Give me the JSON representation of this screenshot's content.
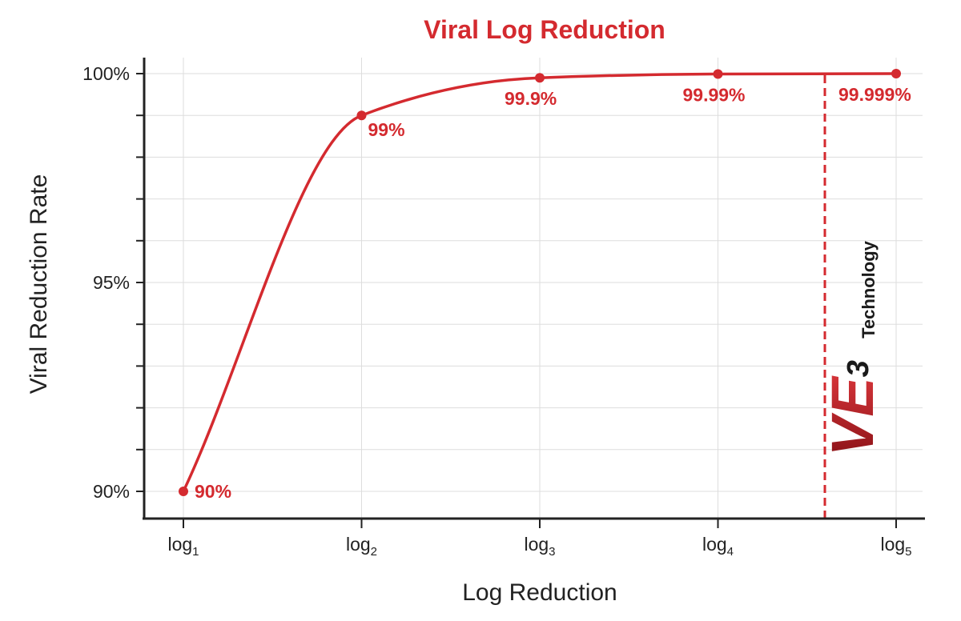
{
  "chart_data": {
    "type": "line",
    "title": "Viral Log Reduction",
    "xlabel": "Log Reduction",
    "ylabel": "Viral Reduction Rate",
    "x_ticks": [
      {
        "base": "log",
        "sub": "1"
      },
      {
        "base": "log",
        "sub": "2"
      },
      {
        "base": "log",
        "sub": "3"
      },
      {
        "base": "log",
        "sub": "4"
      },
      {
        "base": "log",
        "sub": "5"
      }
    ],
    "y_ticks": [
      "90%",
      "95%",
      "100%"
    ],
    "ylim": [
      90,
      100
    ],
    "grid": true,
    "series": [
      {
        "x": [
          1,
          2,
          3,
          4,
          5
        ],
        "values": [
          90,
          99,
          99.9,
          99.99,
          99.999
        ],
        "labels": [
          "90%",
          "99%",
          "99.9%",
          "99.99%",
          "99.999%"
        ]
      }
    ],
    "reference_line": {
      "x": 4.6,
      "style": "dashed"
    },
    "logo": {
      "mark": "VE3",
      "text": "Technology"
    },
    "colors": {
      "accent": "#d42a2f",
      "grid": "#dddddd",
      "axis": "#222222",
      "logo_text": "#1a1a1a"
    }
  }
}
